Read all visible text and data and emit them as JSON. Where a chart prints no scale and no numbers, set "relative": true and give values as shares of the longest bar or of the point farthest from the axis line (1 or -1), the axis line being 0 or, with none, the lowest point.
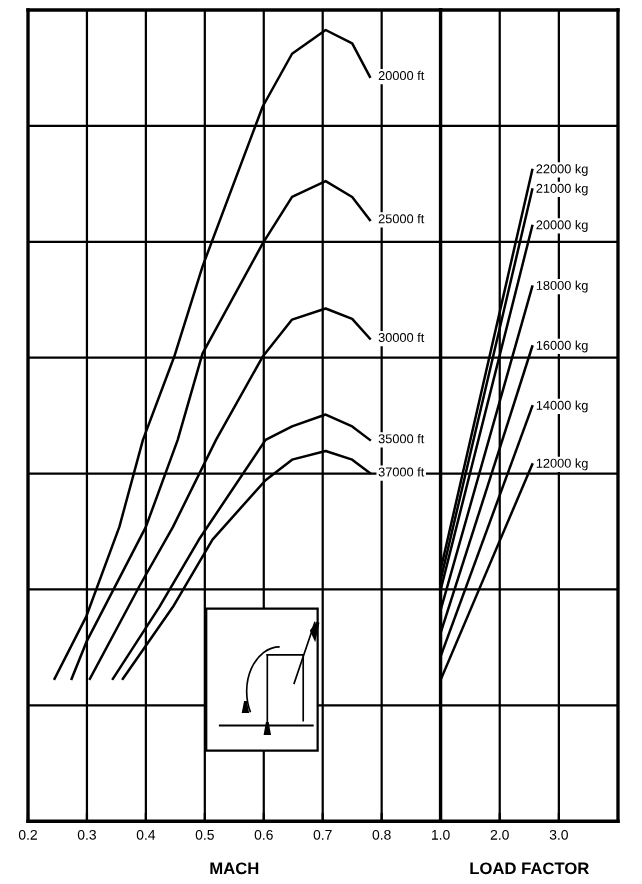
{
  "chart_data": [
    {
      "type": "line",
      "relative": true,
      "xlabel": "MACH",
      "xlim": [
        0.2,
        0.9
      ],
      "xticks": [
        0.2,
        0.3,
        0.4,
        0.5,
        0.6,
        0.7,
        0.8
      ],
      "grid": true,
      "legend": false,
      "series": [
        {
          "name": "20000 ft",
          "color": "#000000",
          "x": [
            0.245,
            0.299,
            0.355,
            0.395,
            0.448,
            0.496,
            0.598,
            0.648,
            0.705,
            0.75,
            0.78
          ],
          "values": [
            0.18,
            0.259,
            0.372,
            0.482,
            0.587,
            0.701,
            0.903,
            0.97,
            1.0,
            0.983,
            0.941
          ]
        },
        {
          "name": "25000 ft",
          "color": "#000000",
          "x": [
            0.274,
            0.3,
            0.4,
            0.454,
            0.496,
            0.598,
            0.648,
            0.705,
            0.75,
            0.78
          ],
          "values": [
            0.18,
            0.228,
            0.372,
            0.482,
            0.591,
            0.73,
            0.789,
            0.809,
            0.789,
            0.76
          ]
        },
        {
          "name": "30000 ft",
          "color": "#000000",
          "x": [
            0.305,
            0.389,
            0.446,
            0.519,
            0.598,
            0.648,
            0.705,
            0.75,
            0.78
          ],
          "values": [
            0.18,
            0.297,
            0.372,
            0.482,
            0.587,
            0.634,
            0.648,
            0.635,
            0.61
          ]
        },
        {
          "name": "35000 ft",
          "color": "#000000",
          "x": [
            0.344,
            0.423,
            0.49,
            0.603,
            0.648,
            0.705,
            0.75,
            0.78
          ],
          "values": [
            0.18,
            0.271,
            0.356,
            0.482,
            0.499,
            0.514,
            0.499,
            0.482
          ]
        },
        {
          "name": "37000 ft",
          "color": "#000000",
          "x": [
            0.361,
            0.446,
            0.513,
            0.603,
            0.648,
            0.705,
            0.75,
            0.78
          ],
          "values": [
            0.18,
            0.271,
            0.356,
            0.431,
            0.457,
            0.468,
            0.457,
            0.44
          ]
        }
      ]
    },
    {
      "type": "line",
      "relative": true,
      "xlabel": "LOAD FACTOR",
      "xlim": [
        1.0,
        4.0
      ],
      "xticks": [
        {
          "value": 1,
          "label": "1.0"
        },
        {
          "value": 2,
          "label": "2.0"
        },
        {
          "value": 3,
          "label": "3.0"
        }
      ],
      "grid": true,
      "legend": false,
      "series": [
        {
          "name": "22000 kg",
          "color": "#000000",
          "x": [
            1.0,
            2.55
          ],
          "values": [
            0.386,
            1.0
          ]
        },
        {
          "name": "21000 kg",
          "color": "#000000",
          "x": [
            1.0,
            2.55
          ],
          "values": [
            0.37,
            0.97
          ]
        },
        {
          "name": "20000 kg",
          "color": "#000000",
          "x": [
            1.0,
            2.55
          ],
          "values": [
            0.355,
            0.914
          ]
        },
        {
          "name": "18000 kg",
          "color": "#000000",
          "x": [
            1.0,
            2.55
          ],
          "values": [
            0.324,
            0.821
          ]
        },
        {
          "name": "16000 kg",
          "color": "#000000",
          "x": [
            1.0,
            2.55
          ],
          "values": [
            0.289,
            0.729
          ]
        },
        {
          "name": "14000 kg",
          "color": "#000000",
          "x": [
            1.0,
            2.55
          ],
          "values": [
            0.253,
            0.637
          ]
        },
        {
          "name": "12000 kg",
          "color": "#000000",
          "x": [
            1.0,
            2.55
          ],
          "values": [
            0.217,
            0.548
          ]
        }
      ]
    }
  ]
}
